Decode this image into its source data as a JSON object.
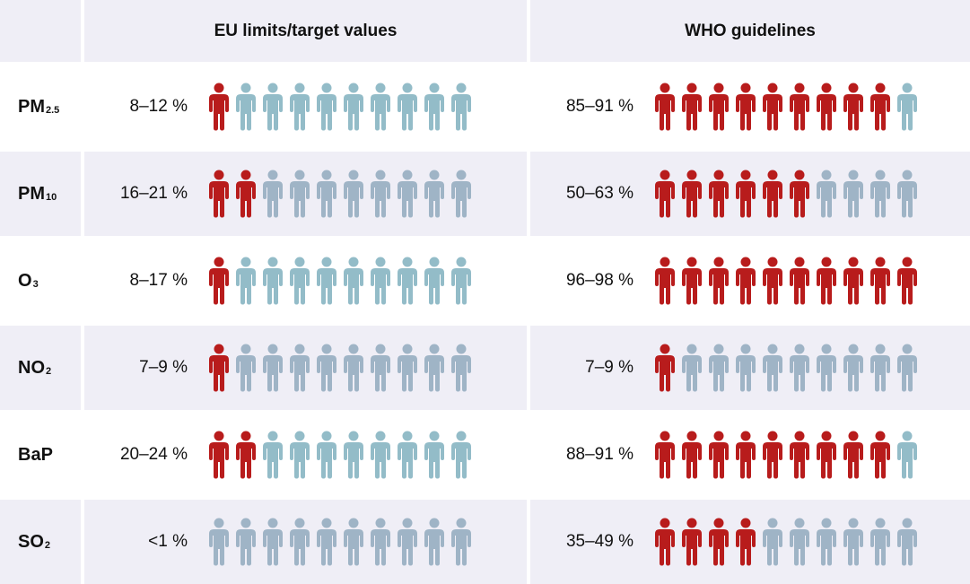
{
  "header": {
    "eu": "EU limits/target values",
    "who": "WHO guidelines"
  },
  "colors": {
    "affected": "#b81c1c",
    "unaffected_teal": "#93bcc8",
    "unaffected_grey": "#9fb4c6",
    "row_band": "#efeef6"
  },
  "chart_data": {
    "type": "table",
    "total_icons": 10,
    "columns": [
      "EU limits/target values",
      "WHO guidelines"
    ],
    "rows": [
      {
        "pollutant": "PM",
        "sub": "2.5",
        "eu": {
          "label": "8–12 %",
          "highlighted": 1,
          "base_color": "teal"
        },
        "who": {
          "label": "85–91 %",
          "highlighted": 9,
          "base_color": "teal"
        }
      },
      {
        "pollutant": "PM",
        "sub": "10",
        "eu": {
          "label": "16–21 %",
          "highlighted": 2,
          "base_color": "grey"
        },
        "who": {
          "label": "50–63 %",
          "highlighted": 6,
          "base_color": "grey"
        }
      },
      {
        "pollutant": "O",
        "sub": "3",
        "eu": {
          "label": "8–17 %",
          "highlighted": 1,
          "base_color": "teal"
        },
        "who": {
          "label": "96–98 %",
          "highlighted": 10,
          "base_color": "teal"
        }
      },
      {
        "pollutant": "NO",
        "sub": "2",
        "eu": {
          "label": "7–9 %",
          "highlighted": 1,
          "base_color": "grey"
        },
        "who": {
          "label": "7–9 %",
          "highlighted": 1,
          "base_color": "grey"
        }
      },
      {
        "pollutant": "BaP",
        "sub": "",
        "eu": {
          "label": "20–24 %",
          "highlighted": 2,
          "base_color": "teal"
        },
        "who": {
          "label": "88–91 %",
          "highlighted": 9,
          "base_color": "teal"
        }
      },
      {
        "pollutant": "SO",
        "sub": "2",
        "eu": {
          "label": "<1 %",
          "highlighted": 0,
          "base_color": "grey"
        },
        "who": {
          "label": "35–49 %",
          "highlighted": 4,
          "base_color": "grey"
        }
      }
    ]
  }
}
